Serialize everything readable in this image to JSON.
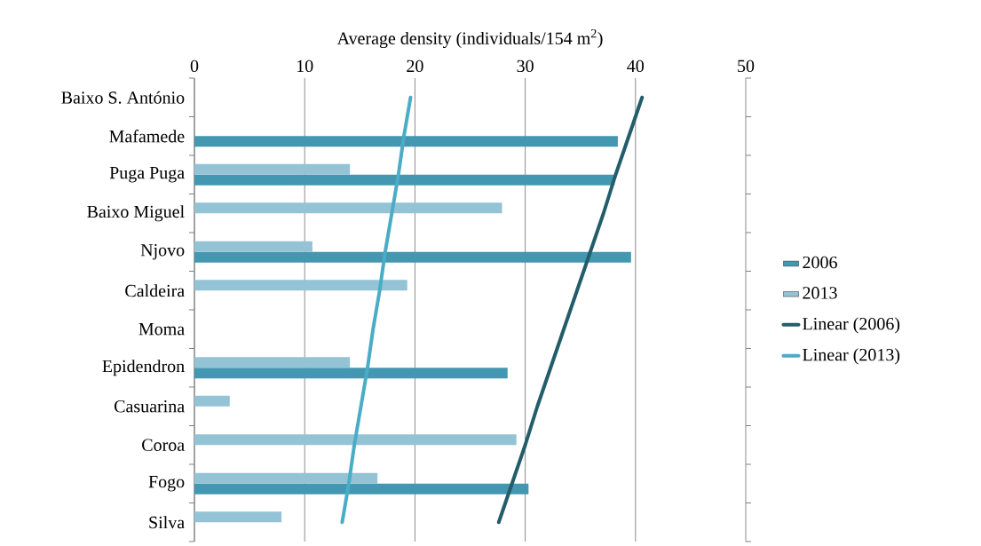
{
  "chart_data": {
    "type": "bar",
    "orientation": "horizontal",
    "xlabel": "Average density (individuals/154 m$^{2}$)",
    "categories": [
      "Baixo S. António",
      "Mafamede",
      "Puga Puga",
      "Baixo Miguel",
      "Njovo",
      "Caldeira",
      "Moma",
      "Epidendron",
      "Casuarina",
      "Coroa",
      "Fogo",
      "Silva"
    ],
    "series": [
      {
        "name": "2006",
        "color": "#4397b0",
        "values": [
          null,
          38.4,
          38.1,
          null,
          39.6,
          null,
          null,
          28.4,
          null,
          null,
          30.3,
          null
        ]
      },
      {
        "name": "2013",
        "color": "#93c3d5",
        "values": [
          null,
          null,
          14.1,
          27.9,
          10.7,
          19.3,
          null,
          14.1,
          3.2,
          29.2,
          16.6,
          7.9
        ]
      },
      {
        "name": "Linear (2006)",
        "type": "line",
        "color": "#235d6a",
        "values": [
          40.6,
          39.4,
          38.2,
          37.1,
          35.9,
          34.7,
          33.5,
          32.3,
          31.1,
          30.0,
          28.8,
          27.6
        ]
      },
      {
        "name": "Linear (2013)",
        "type": "line",
        "color": "#4bacc6",
        "values": [
          19.6,
          19.0,
          18.5,
          17.9,
          17.3,
          16.8,
          16.2,
          15.7,
          15.1,
          14.5,
          14.0,
          13.4
        ]
      }
    ],
    "xlim": [
      0,
      50
    ],
    "xticks": [
      0,
      10,
      20,
      30,
      40,
      50
    ],
    "grid": "x",
    "legend": "right"
  }
}
